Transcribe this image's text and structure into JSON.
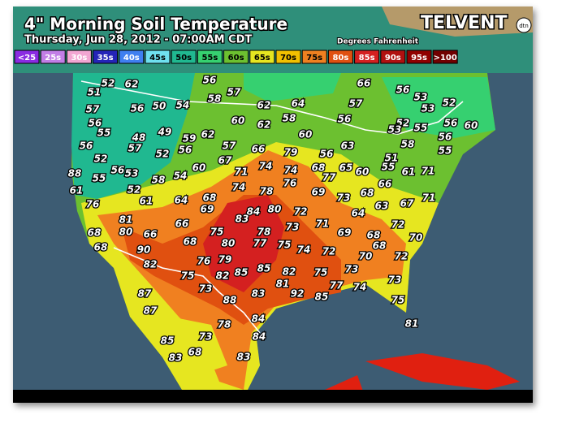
{
  "header": {
    "title": "4\" Morning Soil Temperature",
    "subtitle": "Thursday, Jun 28, 2012 - 07:00AM CDT",
    "units": "Degrees Fahrenheit",
    "brand": "TELVENT",
    "badge": "dtn"
  },
  "legend": [
    {
      "label": "<25",
      "color": "#8a2be2"
    },
    {
      "label": "25s",
      "color": "#c27ee6"
    },
    {
      "label": "30s",
      "color": "#f2a6d2"
    },
    {
      "label": "35s",
      "color": "#2424b8"
    },
    {
      "label": "40s",
      "color": "#3f7ff0"
    },
    {
      "label": "45s",
      "color": "#6fe0f0"
    },
    {
      "label": "50s",
      "color": "#20b890"
    },
    {
      "label": "55s",
      "color": "#36d070"
    },
    {
      "label": "60s",
      "color": "#6cc030"
    },
    {
      "label": "65s",
      "color": "#e6e620"
    },
    {
      "label": "70s",
      "color": "#f2c000"
    },
    {
      "label": "75s",
      "color": "#f08020"
    },
    {
      "label": "80s",
      "color": "#e05010"
    },
    {
      "label": "85s",
      "color": "#d42020"
    },
    {
      "label": "90s",
      "color": "#b01010"
    },
    {
      "label": "95s",
      "color": "#900000"
    },
    {
      "label": ">100",
      "color": "#700000"
    }
  ],
  "readings": [
    52,
    62,
    56,
    57,
    58,
    62,
    64,
    66,
    57,
    56,
    53,
    53,
    52,
    50,
    54,
    56,
    51,
    57,
    56,
    55,
    48,
    49,
    59,
    62,
    60,
    62,
    58,
    56,
    52,
    56,
    60,
    55,
    53,
    56,
    57,
    52,
    56,
    57,
    66,
    79,
    56,
    63,
    60,
    58,
    56,
    55,
    51,
    52,
    56,
    53,
    58,
    54,
    60,
    67,
    71,
    74,
    74,
    68,
    77,
    65,
    60,
    55,
    61,
    71,
    88,
    55,
    52,
    61,
    64,
    68,
    69,
    74,
    78,
    76,
    69,
    73,
    68,
    66,
    63,
    67,
    71,
    61,
    76,
    64,
    72,
    84,
    83,
    80,
    72,
    73,
    71,
    66,
    75,
    78,
    81,
    68,
    80,
    66,
    70,
    68,
    90,
    68,
    80,
    77,
    75,
    74,
    72,
    69,
    68,
    68,
    72,
    82,
    76,
    79,
    85,
    82,
    75,
    73,
    70,
    75,
    82,
    85,
    81,
    77,
    74,
    73,
    87,
    73,
    88,
    83,
    92,
    85,
    75,
    87,
    84,
    81,
    78,
    84,
    73,
    85,
    83,
    68,
    83
  ]
}
